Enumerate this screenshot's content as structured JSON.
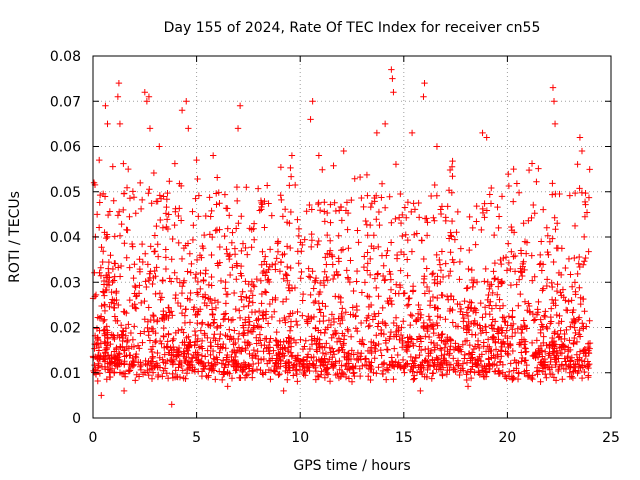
{
  "chart_data": {
    "type": "scatter",
    "title": "Day 155 of 2024, Rate Of TEC Index for receiver cn55",
    "xlabel": "GPS time / hours",
    "ylabel": "ROTI / TECUs",
    "xlim": [
      0,
      25
    ],
    "ylim": [
      0,
      0.08
    ],
    "x_ticks": [
      0,
      5,
      10,
      15,
      20,
      25
    ],
    "x_tick_labels": [
      "0",
      "5",
      "10",
      "15",
      "20",
      "25"
    ],
    "y_ticks": [
      0,
      0.01,
      0.02,
      0.03,
      0.04,
      0.05,
      0.06,
      0.07,
      0.08
    ],
    "y_tick_labels": [
      "0",
      "0.01",
      "0.02",
      "0.03",
      "0.04",
      "0.05",
      "0.06",
      "0.07",
      "0.08"
    ],
    "grid": true,
    "marker": "+",
    "color": "#ff0000",
    "notes": "Dense red '+' markers covering 0–24 h; bulk of values between 0.005 and 0.035 TECU/min with frequent excursions to 0.04–0.06.",
    "series": [
      {
        "name": "ROTI",
        "points": [
          [
            0.05,
            0.052
          ],
          [
            0.2,
            0.045
          ],
          [
            0.3,
            0.057
          ],
          [
            0.6,
            0.069
          ],
          [
            0.7,
            0.065
          ],
          [
            1.0,
            0.048
          ],
          [
            1.2,
            0.071
          ],
          [
            1.25,
            0.074
          ],
          [
            1.3,
            0.065
          ],
          [
            1.7,
            0.055
          ],
          [
            2.5,
            0.072
          ],
          [
            2.6,
            0.07
          ],
          [
            2.7,
            0.071
          ],
          [
            2.75,
            0.064
          ],
          [
            3.2,
            0.06
          ],
          [
            4.3,
            0.068
          ],
          [
            4.5,
            0.07
          ],
          [
            4.6,
            0.064
          ],
          [
            5.0,
            0.057
          ],
          [
            5.8,
            0.058
          ],
          [
            7.1,
            0.069
          ],
          [
            7.0,
            0.064
          ],
          [
            7.4,
            0.051
          ],
          [
            9.6,
            0.058
          ],
          [
            10.6,
            0.07
          ],
          [
            10.5,
            0.066
          ],
          [
            10.9,
            0.058
          ],
          [
            12.1,
            0.059
          ],
          [
            13.7,
            0.063
          ],
          [
            14.1,
            0.065
          ],
          [
            14.4,
            0.077
          ],
          [
            14.45,
            0.075
          ],
          [
            14.5,
            0.072
          ],
          [
            15.4,
            0.063
          ],
          [
            16.0,
            0.074
          ],
          [
            15.95,
            0.071
          ],
          [
            16.6,
            0.06
          ],
          [
            18.8,
            0.063
          ],
          [
            19.0,
            0.062
          ],
          [
            20.3,
            0.055
          ],
          [
            22.2,
            0.073
          ],
          [
            22.25,
            0.07
          ],
          [
            22.3,
            0.065
          ],
          [
            23.5,
            0.062
          ],
          [
            23.6,
            0.059
          ],
          [
            0.4,
            0.005
          ],
          [
            1.5,
            0.006
          ],
          [
            3.8,
            0.003
          ],
          [
            6.5,
            0.007
          ],
          [
            9.2,
            0.006
          ],
          [
            12.5,
            0.008
          ],
          [
            15.8,
            0.006
          ],
          [
            18.1,
            0.007
          ],
          [
            21.6,
            0.008
          ],
          [
            23.9,
            0.009
          ]
        ]
      }
    ]
  }
}
